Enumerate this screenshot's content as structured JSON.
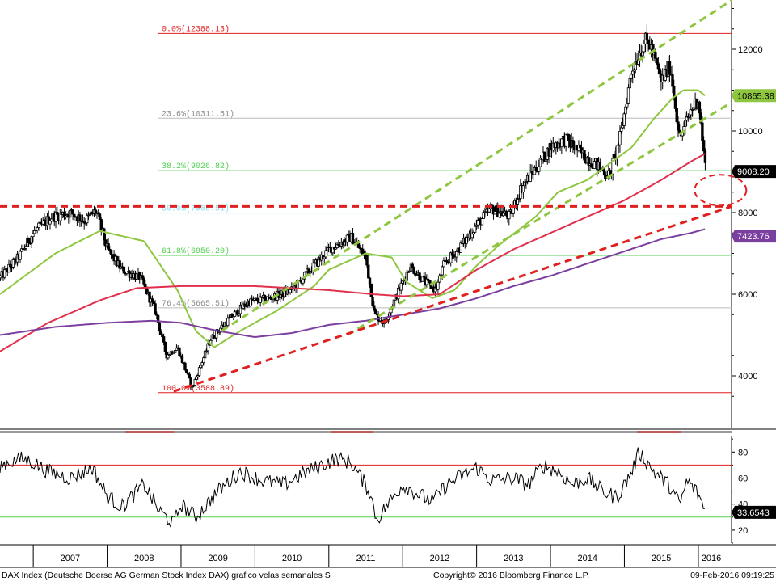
{
  "footer": {
    "description": "DAX Index (Deutsche Boerse AG German Stock Index DAX) grafico velas semanales  S",
    "copyright": "Copyright© 2016 Bloomberg Finance L.P.",
    "timestamp": "09-Feb-2016 09:19:25"
  },
  "chart_data": [
    {
      "type": "candlestick",
      "panel": "price",
      "x_labels": [
        "2007",
        "2008",
        "2009",
        "2010",
        "2011",
        "2012",
        "2013",
        "2014",
        "2015",
        "2016"
      ],
      "ylim": [
        3000,
        13000
      ],
      "y_ticks": [
        4000,
        6000,
        8000,
        10000,
        12000
      ],
      "grid": false,
      "price_series": {
        "t": [
          2006.55,
          2006.8,
          2007.0,
          2007.25,
          2007.5,
          2007.7,
          2007.85,
          2008.0,
          2008.2,
          2008.45,
          2008.65,
          2008.8,
          2008.95,
          2009.15,
          2009.4,
          2009.6,
          2009.9,
          2010.2,
          2010.5,
          2010.8,
          2011.0,
          2011.3,
          2011.5,
          2011.62,
          2011.75,
          2011.9,
          2012.1,
          2012.3,
          2012.45,
          2012.55,
          2012.8,
          2013.0,
          2013.2,
          2013.45,
          2013.6,
          2013.85,
          2014.0,
          2014.2,
          2014.45,
          2014.6,
          2014.8,
          2014.95,
          2015.1,
          2015.27,
          2015.35,
          2015.5,
          2015.62,
          2015.75,
          2015.9,
          2016.0,
          2016.1
        ],
        "close": [
          6400,
          6900,
          7500,
          7900,
          8000,
          7800,
          8050,
          7100,
          6600,
          6400,
          5600,
          4500,
          4700,
          3700,
          4900,
          5300,
          5800,
          5900,
          6100,
          6700,
          7100,
          7400,
          6900,
          5500,
          5300,
          5900,
          6700,
          6300,
          6100,
          6700,
          7200,
          7700,
          8100,
          7900,
          8600,
          9200,
          9600,
          9800,
          9400,
          9200,
          8900,
          9900,
          11500,
          12200,
          12100,
          11200,
          11600,
          9800,
          10500,
          10800,
          9008
        ]
      },
      "overlays": [
        {
          "name": "ma_green",
          "color": "#8fc640",
          "t": [
            2006.55,
            2007.3,
            2007.9,
            2008.5,
            2008.95,
            2009.2,
            2009.45,
            2009.8,
            2010.3,
            2010.8,
            2011.0,
            2011.5,
            2011.85,
            2012.05,
            2012.4,
            2012.7,
            2013.0,
            2013.3,
            2013.8,
            2014.1,
            2014.5,
            2014.8,
            2015.1,
            2015.4,
            2015.65,
            2015.8,
            2016.0,
            2016.1
          ],
          "v": [
            6000,
            7000,
            7550,
            7300,
            6100,
            5100,
            4700,
            5100,
            5600,
            6200,
            6600,
            7000,
            6900,
            6300,
            5900,
            6100,
            6700,
            7200,
            7900,
            8500,
            8800,
            9200,
            9600,
            10300,
            10800,
            11000,
            11000,
            10850
          ]
        },
        {
          "name": "ma_red",
          "color": "#e0304b",
          "t": [
            2006.55,
            2007.2,
            2007.9,
            2008.4,
            2009.0,
            2009.5,
            2010.0,
            2010.5,
            2011.0,
            2011.3,
            2011.6,
            2012.0,
            2012.5,
            2013.0,
            2013.5,
            2014.0,
            2014.5,
            2015.0,
            2015.5,
            2015.9,
            2016.05,
            2016.1
          ],
          "v": [
            4600,
            5300,
            5850,
            6150,
            6200,
            6200,
            6200,
            6150,
            6100,
            6050,
            6000,
            5950,
            6000,
            6600,
            7100,
            7500,
            7900,
            8300,
            8800,
            9250,
            9400,
            9450
          ]
        },
        {
          "name": "ma_purple",
          "color": "#7b3fa0",
          "t": [
            2006.55,
            2007.3,
            2008.0,
            2008.6,
            2009.0,
            2009.5,
            2010.0,
            2010.5,
            2011.0,
            2011.5,
            2012.0,
            2012.5,
            2013.0,
            2013.5,
            2014.0,
            2014.5,
            2015.0,
            2015.5,
            2015.9,
            2016.1
          ],
          "v": [
            5000,
            5200,
            5300,
            5350,
            5300,
            5100,
            4950,
            5050,
            5250,
            5350,
            5500,
            5650,
            5900,
            6200,
            6450,
            6750,
            7050,
            7350,
            7500,
            7600
          ]
        }
      ],
      "trendlines": [
        {
          "name": "channel-upper",
          "color": "#8fc640",
          "style": "dashed",
          "t": [
            2009.55,
            2016.45
          ],
          "v": [
            5100,
            13200
          ]
        },
        {
          "name": "channel-lower",
          "color": "#8fc640",
          "style": "dashed",
          "t": [
            2011.25,
            2016.45
          ],
          "v": [
            5000,
            10700
          ]
        },
        {
          "name": "support-red",
          "color": "#e02020",
          "style": "dashed",
          "t": [
            2008.9,
            2016.45
          ],
          "v": [
            3620,
            8150
          ]
        },
        {
          "name": "horizontal-red",
          "color": "#e02020",
          "style": "dashed",
          "t": [
            2006.55,
            2016.45
          ],
          "v": [
            8150,
            8150
          ]
        }
      ],
      "fib_levels": [
        {
          "label": "0.0%(12388.13)",
          "value": 12388.13,
          "color": "#e02020"
        },
        {
          "label": "23.6%(10311.51)",
          "value": 10311.51,
          "color": "#bbbbbb"
        },
        {
          "label": "38.2%(9026.82)",
          "value": 9026.82,
          "color": "#55d155"
        },
        {
          "label": "50.0%(7988.51)",
          "value": 7988.51,
          "color": "#8fd8ec"
        },
        {
          "label": "61.8%(6950.20)",
          "value": 6950.2,
          "color": "#55d155"
        },
        {
          "label": "76.4%(5665.51)",
          "value": 5665.51,
          "color": "#bbbbbb"
        },
        {
          "label": "100.0%(3588.89)",
          "value": 3588.89,
          "color": "#e02020"
        }
      ],
      "badges": [
        {
          "label": "10865.38",
          "value": 10865.38,
          "bg": "#8fc640",
          "fg": "#000000"
        },
        {
          "label": "9008.20",
          "value": 9008.2,
          "bg": "#000000",
          "fg": "#ffffff"
        },
        {
          "label": "7423.76",
          "value": 7423.76,
          "bg": "#7b3fa0",
          "fg": "#ffffff"
        }
      ],
      "annotation": {
        "shape": "dashed-ellipse",
        "color": "#e02020",
        "t": 2016.3,
        "v": 8550
      }
    },
    {
      "type": "line",
      "panel": "rsi",
      "ylim": [
        10,
        92
      ],
      "y_ticks": [
        20,
        40,
        60,
        80
      ],
      "reference_lines": [
        {
          "value": 70,
          "color": "#e02020"
        },
        {
          "value": 30,
          "color": "#55d155"
        }
      ],
      "series": {
        "t": [
          2006.55,
          2006.85,
          2007.0,
          2007.2,
          2007.5,
          2007.8,
          2008.0,
          2008.2,
          2008.5,
          2008.7,
          2008.9,
          2009.0,
          2009.2,
          2009.5,
          2009.8,
          2010.1,
          2010.4,
          2010.6,
          2010.9,
          2011.1,
          2011.3,
          2011.55,
          2011.65,
          2011.8,
          2012.0,
          2012.2,
          2012.4,
          2012.6,
          2012.8,
          2013.0,
          2013.2,
          2013.5,
          2013.7,
          2013.9,
          2014.1,
          2014.3,
          2014.5,
          2014.7,
          2014.9,
          2015.1,
          2015.2,
          2015.4,
          2015.6,
          2015.75,
          2015.85,
          2016.0,
          2016.1
        ],
        "v": [
          70,
          75,
          72,
          65,
          60,
          68,
          46,
          38,
          55,
          35,
          25,
          40,
          30,
          50,
          65,
          58,
          55,
          62,
          70,
          75,
          72,
          50,
          28,
          40,
          55,
          48,
          42,
          55,
          62,
          68,
          58,
          60,
          55,
          70,
          65,
          55,
          60,
          50,
          45,
          65,
          80,
          65,
          55,
          40,
          58,
          48,
          33.65
        ]
      },
      "badges": [
        {
          "label": "33.6543",
          "value": 33.6543,
          "bg": "#000000",
          "fg": "#ffffff"
        }
      ]
    }
  ]
}
